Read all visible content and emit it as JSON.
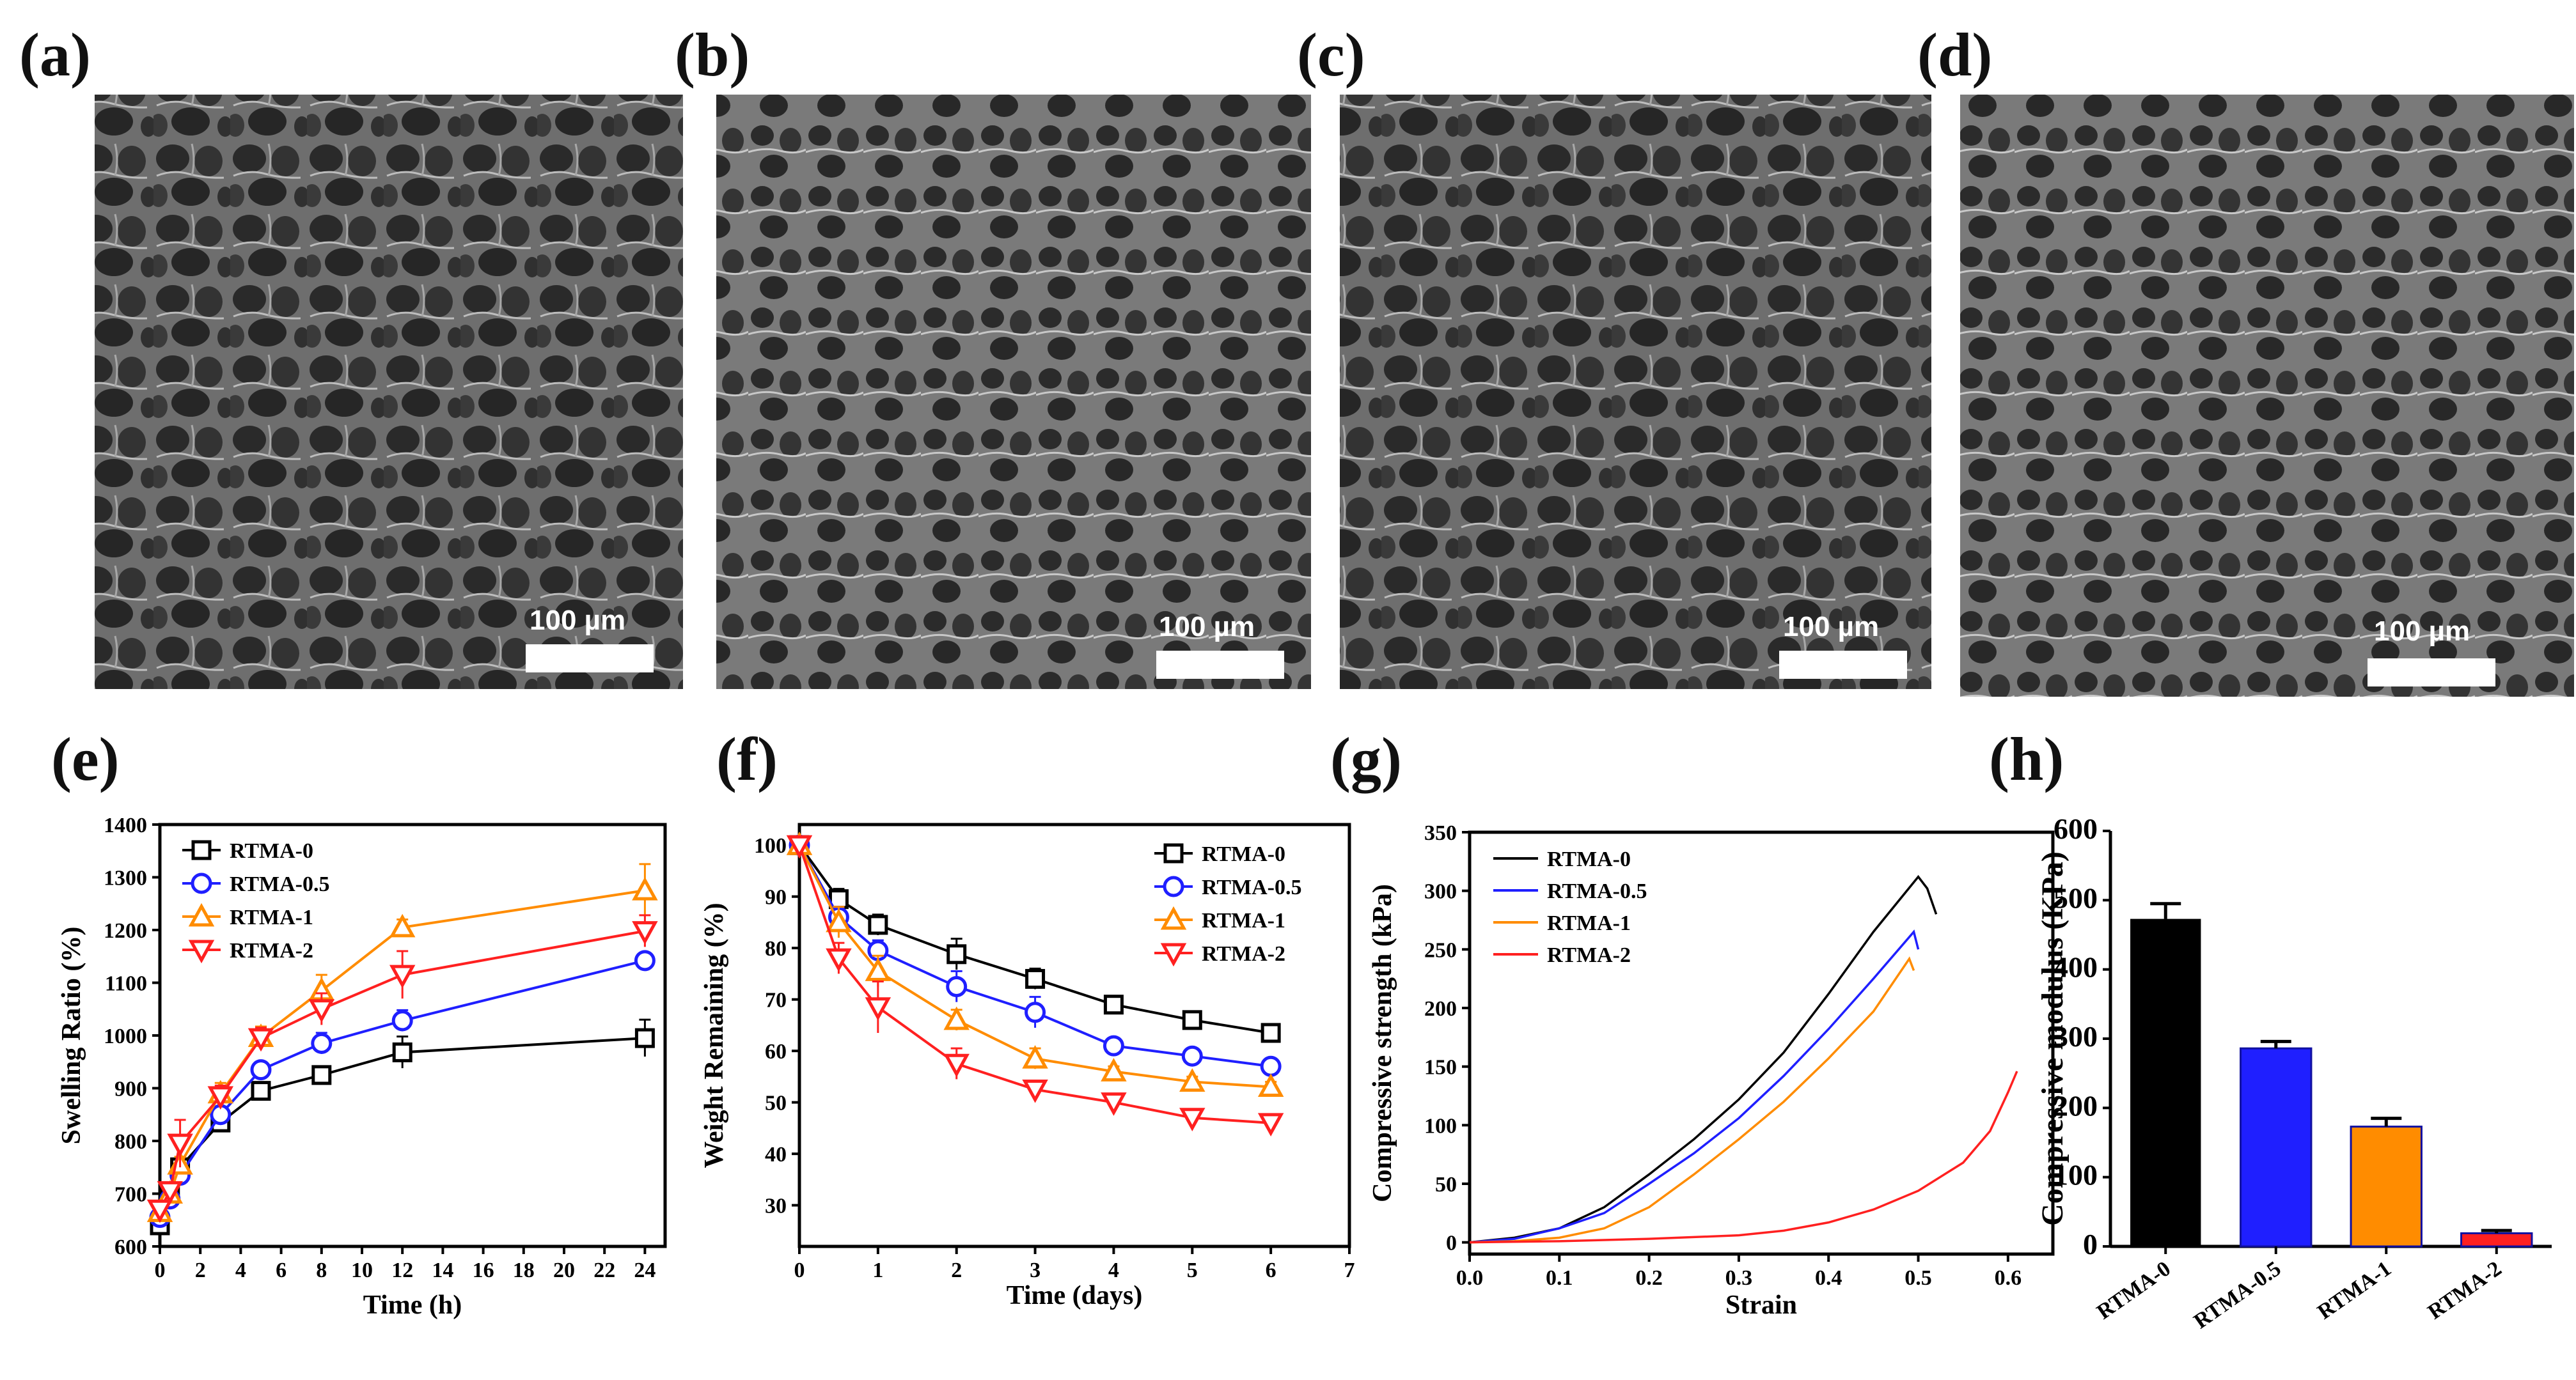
{
  "panel_labels": [
    "(a)",
    "(b)",
    "(c)",
    "(d)",
    "(e)",
    "(f)",
    "(g)",
    "(h)"
  ],
  "sem_panels": [
    {
      "id": "a",
      "scale_label": "100 µm"
    },
    {
      "id": "b",
      "scale_label": "100 µm"
    },
    {
      "id": "c",
      "scale_label": "100 µm"
    },
    {
      "id": "d",
      "scale_label": "100 µm"
    }
  ],
  "colors": {
    "RTMA-0": "#000000",
    "RTMA-0.5": "#1f1fff",
    "RTMA-1": "#ff8c00",
    "RTMA-2": "#ff2020"
  },
  "chart_data": [
    {
      "id": "e",
      "type": "line",
      "xlabel": "Time (h)",
      "ylabel": "Swelling Ratio (%)",
      "xlim": [
        0,
        25
      ],
      "ylim": [
        600,
        1400
      ],
      "xticks": [
        0,
        2,
        4,
        6,
        8,
        10,
        12,
        14,
        16,
        18,
        20,
        22,
        24
      ],
      "yticks": [
        600,
        700,
        800,
        900,
        1000,
        1100,
        1200,
        1300,
        1400
      ],
      "legend_position": "top-left",
      "series": [
        {
          "name": "RTMA-0",
          "marker": "square",
          "x": [
            0,
            0.5,
            1,
            3,
            5,
            8,
            12,
            24
          ],
          "y": [
            640,
            700,
            750,
            835,
            895,
            925,
            968,
            995
          ],
          "err": [
            15,
            15,
            15,
            15,
            15,
            15,
            30,
            35
          ]
        },
        {
          "name": "RTMA-0.5",
          "marker": "circle",
          "x": [
            0,
            0.5,
            1,
            3,
            5,
            8,
            12,
            24
          ],
          "y": [
            655,
            690,
            735,
            850,
            935,
            985,
            1028,
            1142
          ],
          "err": [
            15,
            15,
            15,
            15,
            15,
            20,
            20,
            15
          ]
        },
        {
          "name": "RTMA-1",
          "marker": "triangle-up",
          "x": [
            0,
            0.5,
            1,
            3,
            5,
            8,
            12,
            24
          ],
          "y": [
            665,
            700,
            755,
            890,
            997,
            1085,
            1205,
            1275
          ],
          "err": [
            15,
            15,
            15,
            20,
            20,
            30,
            15,
            50
          ]
        },
        {
          "name": "RTMA-2",
          "marker": "triangle-down",
          "x": [
            0,
            0.5,
            1,
            3,
            5,
            8,
            12,
            24
          ],
          "y": [
            670,
            705,
            795,
            885,
            995,
            1050,
            1115,
            1198
          ],
          "err": [
            15,
            15,
            45,
            20,
            20,
            30,
            45,
            30
          ]
        }
      ]
    },
    {
      "id": "f",
      "type": "line",
      "xlabel": "Time (days)",
      "ylabel": "Weight Remaining (%)",
      "xlim": [
        0,
        7
      ],
      "ylim": [
        22,
        104
      ],
      "xticks": [
        0,
        1,
        2,
        3,
        4,
        5,
        6,
        7
      ],
      "yticks": [
        30,
        40,
        50,
        60,
        70,
        80,
        90,
        100
      ],
      "legend_position": "top-right",
      "series": [
        {
          "name": "RTMA-0",
          "marker": "square",
          "x": [
            0,
            0.5,
            1,
            2,
            3,
            4,
            5,
            6
          ],
          "y": [
            100,
            89.5,
            84.5,
            78.8,
            74,
            69,
            66,
            63.5
          ],
          "err": [
            1,
            2,
            2,
            3,
            2,
            1,
            1,
            1
          ]
        },
        {
          "name": "RTMA-0.5",
          "marker": "circle",
          "x": [
            0,
            0.5,
            1,
            2,
            3,
            4,
            5,
            6
          ],
          "y": [
            100,
            86,
            79.5,
            72.5,
            67.5,
            61,
            59,
            57
          ],
          "err": [
            1,
            2,
            2,
            3,
            3,
            1,
            1,
            1
          ]
        },
        {
          "name": "RTMA-1",
          "marker": "triangle-up",
          "x": [
            0,
            0.5,
            1,
            2,
            3,
            4,
            5,
            6
          ],
          "y": [
            100,
            85,
            75.5,
            66,
            58.5,
            56,
            54,
            53
          ],
          "err": [
            1,
            3,
            3,
            2,
            2,
            1,
            1,
            1
          ]
        },
        {
          "name": "RTMA-2",
          "marker": "triangle-down",
          "x": [
            0,
            0.5,
            1,
            2,
            3,
            4,
            5,
            6
          ],
          "y": [
            100,
            78,
            68.5,
            57.5,
            52.5,
            50,
            47,
            46
          ],
          "err": [
            1,
            3,
            5,
            3,
            1,
            1,
            1,
            1
          ]
        }
      ]
    },
    {
      "id": "g",
      "type": "line",
      "xlabel": "Strain",
      "ylabel": "Compressive strength (kPa)",
      "xlim": [
        0,
        0.65
      ],
      "ylim": [
        -10,
        350
      ],
      "xticks": [
        0.0,
        0.1,
        0.2,
        0.3,
        0.4,
        0.5,
        0.6
      ],
      "yticks": [
        0,
        50,
        100,
        150,
        200,
        250,
        300,
        350
      ],
      "legend_position": "top-left",
      "series": [
        {
          "name": "RTMA-0",
          "x": [
            0,
            0.05,
            0.1,
            0.15,
            0.2,
            0.25,
            0.3,
            0.35,
            0.4,
            0.45,
            0.5,
            0.51,
            0.52
          ],
          "y": [
            0,
            4,
            12,
            30,
            58,
            88,
            122,
            162,
            212,
            265,
            312,
            302,
            280
          ]
        },
        {
          "name": "RTMA-0.5",
          "x": [
            0,
            0.05,
            0.1,
            0.15,
            0.2,
            0.25,
            0.3,
            0.35,
            0.4,
            0.45,
            0.495,
            0.5
          ],
          "y": [
            0,
            3,
            12,
            25,
            50,
            76,
            106,
            142,
            182,
            225,
            265,
            250
          ]
        },
        {
          "name": "RTMA-1",
          "x": [
            0,
            0.05,
            0.1,
            0.15,
            0.2,
            0.25,
            0.3,
            0.35,
            0.4,
            0.45,
            0.49,
            0.495
          ],
          "y": [
            0,
            1,
            4,
            12,
            30,
            58,
            88,
            120,
            157,
            197,
            242,
            232
          ]
        },
        {
          "name": "RTMA-2",
          "x": [
            0,
            0.1,
            0.2,
            0.3,
            0.35,
            0.4,
            0.45,
            0.5,
            0.55,
            0.58,
            0.6,
            0.61
          ],
          "y": [
            0,
            1,
            3,
            6,
            10,
            17,
            28,
            44,
            68,
            95,
            128,
            146
          ]
        }
      ]
    },
    {
      "id": "h",
      "type": "bar",
      "xlabel": "",
      "ylabel": "Compressive modulus (KPa)",
      "ylim": [
        0,
        600
      ],
      "yticks": [
        0,
        100,
        200,
        300,
        400,
        500,
        600
      ],
      "categories": [
        "RTMA-0",
        "RTMA-0.5",
        "RTMA-1",
        "RTMA-2"
      ],
      "values": [
        473,
        286,
        173,
        19
      ],
      "err": [
        22,
        10,
        12,
        4
      ]
    }
  ]
}
